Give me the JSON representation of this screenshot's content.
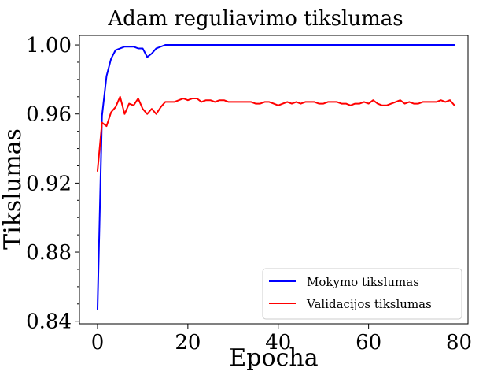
{
  "chart_data": {
    "type": "line",
    "title": "Adam reguliavimo tikslumas",
    "xlabel": "Epocha",
    "ylabel": "Tikslumas",
    "xlim": [
      -4,
      82
    ],
    "ylim": [
      0.8385,
      1.0055
    ],
    "xticks": [
      0,
      20,
      40,
      60,
      80
    ],
    "yticks": [
      0.84,
      0.88,
      0.92,
      0.96,
      1.0
    ],
    "xtick_labels": [
      "0",
      "20",
      "40",
      "60",
      "80"
    ],
    "ytick_labels": [
      "0.84",
      "0.88",
      "0.92",
      "0.96",
      "1.00"
    ],
    "y_minor_step": 0.01,
    "grid": false,
    "legend_position": "lower-right",
    "series": [
      {
        "name": "Mokymo tikslumas",
        "color": "#0000ff",
        "x": [
          0,
          1,
          2,
          3,
          4,
          5,
          6,
          7,
          8,
          9,
          10,
          11,
          12,
          13,
          14,
          15,
          16,
          17,
          18,
          19,
          20,
          21,
          22,
          23,
          24,
          25,
          26,
          27,
          28,
          29,
          30,
          31,
          32,
          33,
          34,
          35,
          36,
          37,
          38,
          39,
          40,
          41,
          42,
          43,
          44,
          45,
          46,
          47,
          48,
          49,
          50,
          51,
          52,
          53,
          54,
          55,
          56,
          57,
          58,
          59,
          60,
          61,
          62,
          63,
          64,
          65,
          66,
          67,
          68,
          69,
          70,
          71,
          72,
          73,
          74,
          75,
          76,
          77,
          78,
          79
        ],
        "values": [
          0.847,
          0.959,
          0.982,
          0.992,
          0.997,
          0.998,
          0.999,
          0.999,
          0.999,
          0.998,
          0.998,
          0.993,
          0.995,
          0.998,
          0.999,
          1.0,
          1.0,
          1.0,
          1.0,
          1.0,
          1.0,
          1.0,
          1.0,
          1.0,
          1.0,
          1.0,
          1.0,
          1.0,
          1.0,
          1.0,
          1.0,
          1.0,
          1.0,
          1.0,
          1.0,
          1.0,
          1.0,
          1.0,
          1.0,
          1.0,
          1.0,
          1.0,
          1.0,
          1.0,
          1.0,
          1.0,
          1.0,
          1.0,
          1.0,
          1.0,
          1.0,
          1.0,
          1.0,
          1.0,
          1.0,
          1.0,
          1.0,
          1.0,
          1.0,
          1.0,
          1.0,
          1.0,
          1.0,
          1.0,
          1.0,
          1.0,
          1.0,
          1.0,
          1.0,
          1.0,
          1.0,
          1.0,
          1.0,
          1.0,
          1.0,
          1.0,
          1.0,
          1.0,
          1.0,
          1.0
        ]
      },
      {
        "name": "Validacijos tikslumas",
        "color": "#ff0000",
        "x": [
          0,
          1,
          2,
          3,
          4,
          5,
          6,
          7,
          8,
          9,
          10,
          11,
          12,
          13,
          14,
          15,
          16,
          17,
          18,
          19,
          20,
          21,
          22,
          23,
          24,
          25,
          26,
          27,
          28,
          29,
          30,
          31,
          32,
          33,
          34,
          35,
          36,
          37,
          38,
          39,
          40,
          41,
          42,
          43,
          44,
          45,
          46,
          47,
          48,
          49,
          50,
          51,
          52,
          53,
          54,
          55,
          56,
          57,
          58,
          59,
          60,
          61,
          62,
          63,
          64,
          65,
          66,
          67,
          68,
          69,
          70,
          71,
          72,
          73,
          74,
          75,
          76,
          77,
          78,
          79
        ],
        "values": [
          0.927,
          0.955,
          0.953,
          0.961,
          0.964,
          0.97,
          0.96,
          0.966,
          0.965,
          0.969,
          0.963,
          0.96,
          0.963,
          0.96,
          0.964,
          0.967,
          0.967,
          0.967,
          0.968,
          0.969,
          0.968,
          0.969,
          0.969,
          0.967,
          0.968,
          0.968,
          0.967,
          0.968,
          0.968,
          0.967,
          0.967,
          0.967,
          0.967,
          0.967,
          0.967,
          0.966,
          0.966,
          0.967,
          0.967,
          0.966,
          0.965,
          0.966,
          0.967,
          0.966,
          0.967,
          0.966,
          0.967,
          0.967,
          0.967,
          0.966,
          0.966,
          0.967,
          0.967,
          0.967,
          0.966,
          0.966,
          0.965,
          0.966,
          0.966,
          0.967,
          0.966,
          0.968,
          0.966,
          0.965,
          0.965,
          0.966,
          0.967,
          0.968,
          0.966,
          0.967,
          0.966,
          0.966,
          0.967,
          0.967,
          0.967,
          0.967,
          0.968,
          0.967,
          0.968,
          0.965
        ]
      }
    ]
  }
}
